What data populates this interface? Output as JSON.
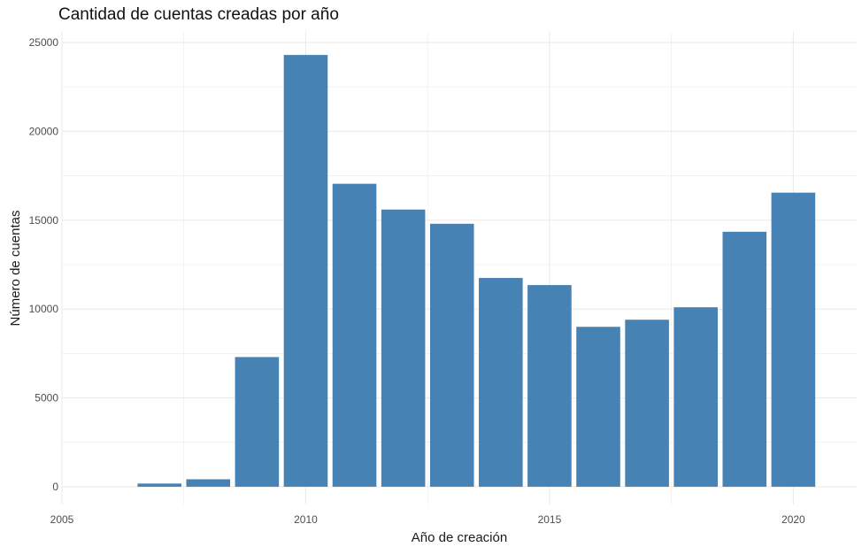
{
  "chart_data": {
    "type": "bar",
    "title": "Cantidad de cuentas creadas por año",
    "xlabel": "Año de creación",
    "ylabel": "Número de cuentas",
    "x": [
      2007,
      2008,
      2009,
      2010,
      2011,
      2012,
      2013,
      2014,
      2015,
      2016,
      2017,
      2018,
      2019,
      2020
    ],
    "values": [
      180,
      420,
      7300,
      24300,
      17050,
      15600,
      14800,
      11750,
      11350,
      9000,
      9400,
      10100,
      14350,
      16550
    ],
    "xlim": [
      2005,
      2021.3
    ],
    "ylim": [
      -1000,
      25600
    ],
    "xticks": [
      2005,
      2010,
      2015,
      2020
    ],
    "yticks": [
      0,
      5000,
      10000,
      15000,
      20000,
      25000
    ],
    "grid": true,
    "bar_color": "#4682b4",
    "grid_color": "#ebebeb"
  }
}
